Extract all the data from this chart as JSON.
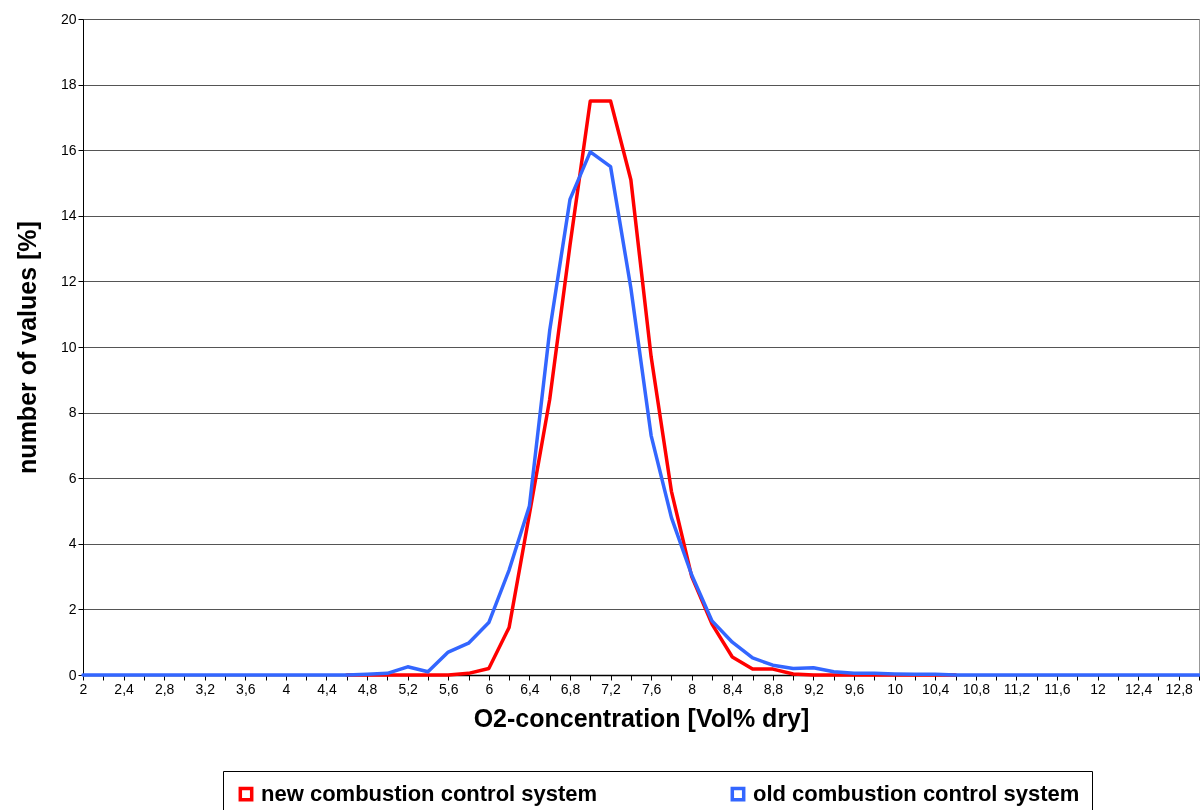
{
  "chart_data": {
    "type": "line",
    "xlabel": "O2-concentration [Vol% dry]",
    "ylabel": "number of values [%]",
    "categories": [
      "2",
      null,
      "2,4",
      null,
      "2,8",
      null,
      "3,2",
      null,
      "3,6",
      null,
      "4",
      null,
      "4,4",
      null,
      "4,8",
      null,
      "5,2",
      null,
      "5,6",
      null,
      "6",
      null,
      "6,4",
      null,
      "6,8",
      null,
      "7,2",
      null,
      "7,6",
      null,
      "8",
      null,
      "8,4",
      null,
      "8,8",
      null,
      "9,2",
      null,
      "9,6",
      null,
      "10",
      null,
      "10,4",
      null,
      "10,8",
      null,
      "11,2",
      null,
      "11,6",
      null,
      "12",
      null,
      "12,4",
      null,
      "12,8",
      null
    ],
    "series": [
      {
        "name": "new combustion control system",
        "color": "#ff0000",
        "values": [
          null,
          null,
          null,
          null,
          null,
          null,
          null,
          null,
          null,
          null,
          null,
          null,
          null,
          0,
          0,
          0,
          0,
          0,
          0,
          0.05,
          0.2,
          1.45,
          4.9,
          8.4,
          13.1,
          17.5,
          17.5,
          15.1,
          9.7,
          5.6,
          3.0,
          1.55,
          0.55,
          0.18,
          0.18,
          0.03,
          0,
          0,
          0,
          0,
          0,
          0,
          0,
          0,
          null,
          null,
          null,
          null,
          null,
          null,
          null,
          null,
          null,
          null,
          null,
          null
        ]
      },
      {
        "name": "old combustion control system",
        "color": "#3366ff",
        "values": [
          0,
          0,
          0,
          0,
          0,
          0,
          0,
          0,
          0,
          0,
          0,
          0,
          0,
          0,
          0.02,
          0.05,
          0.25,
          0.1,
          0.7,
          0.97,
          1.6,
          3.2,
          5.15,
          10.5,
          14.5,
          15.95,
          15.5,
          11.8,
          7.3,
          4.8,
          3.05,
          1.65,
          1.0,
          0.52,
          0.3,
          0.2,
          0.22,
          0.1,
          0.05,
          0.05,
          0.03,
          0.02,
          0.02,
          0,
          0,
          0,
          0,
          0,
          0,
          0,
          0,
          0,
          0,
          0,
          0,
          0
        ]
      }
    ],
    "ylim": [
      0,
      20
    ],
    "yticks": [
      0,
      2,
      4,
      6,
      8,
      10,
      12,
      14,
      16,
      18,
      20
    ],
    "grid": "y",
    "legend": "bottom"
  }
}
